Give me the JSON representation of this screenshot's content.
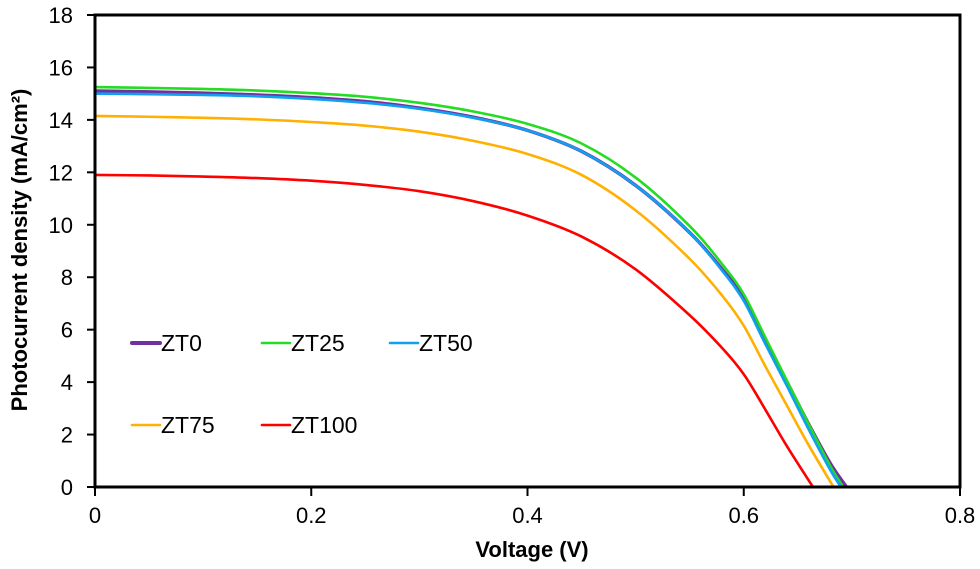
{
  "chart_data": {
    "type": "line",
    "title": "",
    "xlabel": "Voltage (V)",
    "ylabel": "Photocurrent density (mA/cm²)",
    "xlim": [
      0,
      0.8
    ],
    "ylim": [
      0,
      18
    ],
    "xticks": [
      0,
      0.2,
      0.4,
      0.6,
      0.8
    ],
    "xtick_labels": [
      "0",
      "0.2",
      "0.4",
      "0.6",
      "0.8"
    ],
    "yticks": [
      0,
      2,
      4,
      6,
      8,
      10,
      12,
      14,
      16,
      18
    ],
    "ytick_labels": [
      "0",
      "2",
      "4",
      "6",
      "8",
      "10",
      "12",
      "14",
      "16",
      "18"
    ],
    "grid": false,
    "legend_position": "lower-left",
    "series": [
      {
        "name": "ZT0",
        "color": "#7030A0",
        "x": [
          0,
          0.05,
          0.1,
          0.15,
          0.2,
          0.25,
          0.3,
          0.35,
          0.4,
          0.45,
          0.5,
          0.55,
          0.58,
          0.6,
          0.62,
          0.64,
          0.66,
          0.68,
          0.695
        ],
        "y": [
          15.1,
          15.07,
          15.02,
          14.95,
          14.85,
          14.7,
          14.45,
          14.1,
          13.6,
          12.8,
          11.5,
          9.7,
          8.3,
          7.2,
          5.6,
          4.0,
          2.4,
          0.9,
          0
        ]
      },
      {
        "name": "ZT25",
        "color": "#22DD22",
        "x": [
          0,
          0.05,
          0.1,
          0.15,
          0.2,
          0.25,
          0.3,
          0.35,
          0.4,
          0.45,
          0.5,
          0.55,
          0.58,
          0.6,
          0.62,
          0.64,
          0.66,
          0.68,
          0.692
        ],
        "y": [
          15.25,
          15.22,
          15.18,
          15.12,
          15.02,
          14.88,
          14.65,
          14.32,
          13.85,
          13.1,
          11.8,
          9.95,
          8.5,
          7.35,
          5.7,
          4.05,
          2.4,
          0.8,
          0
        ]
      },
      {
        "name": "ZT50",
        "color": "#0FA0F0",
        "x": [
          0,
          0.05,
          0.1,
          0.15,
          0.2,
          0.25,
          0.3,
          0.35,
          0.4,
          0.45,
          0.5,
          0.55,
          0.58,
          0.6,
          0.62,
          0.64,
          0.66,
          0.68,
          0.69
        ],
        "y": [
          15.0,
          14.98,
          14.95,
          14.9,
          14.8,
          14.65,
          14.42,
          14.08,
          13.6,
          12.8,
          11.5,
          9.7,
          8.25,
          7.1,
          5.45,
          3.85,
          2.2,
          0.65,
          0
        ]
      },
      {
        "name": "ZT75",
        "color": "#FFB000",
        "x": [
          0,
          0.05,
          0.1,
          0.15,
          0.2,
          0.25,
          0.3,
          0.35,
          0.4,
          0.45,
          0.5,
          0.55,
          0.58,
          0.6,
          0.62,
          0.64,
          0.66,
          0.683
        ],
        "y": [
          14.15,
          14.12,
          14.08,
          14.02,
          13.92,
          13.78,
          13.55,
          13.2,
          12.7,
          11.9,
          10.55,
          8.7,
          7.3,
          6.15,
          4.6,
          3.1,
          1.6,
          0
        ]
      },
      {
        "name": "ZT100",
        "color": "#FF0000",
        "x": [
          0,
          0.05,
          0.1,
          0.15,
          0.2,
          0.25,
          0.3,
          0.35,
          0.4,
          0.45,
          0.5,
          0.55,
          0.58,
          0.6,
          0.62,
          0.64,
          0.664
        ],
        "y": [
          11.9,
          11.88,
          11.84,
          11.78,
          11.68,
          11.52,
          11.28,
          10.9,
          10.35,
          9.55,
          8.3,
          6.55,
          5.3,
          4.3,
          2.95,
          1.55,
          0
        ]
      }
    ]
  }
}
